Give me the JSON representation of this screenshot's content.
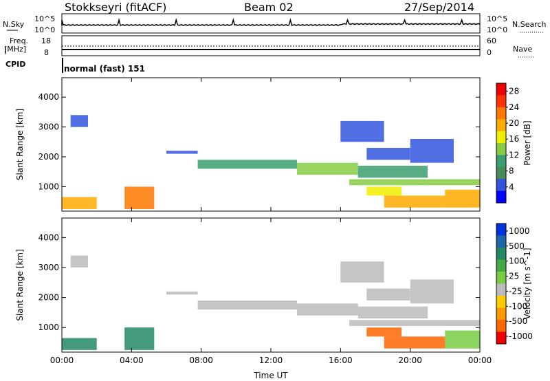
{
  "header": {
    "station": "Stokkseyri (fitACF)",
    "beam": "Beam 02",
    "date": "27/Sep/2014"
  },
  "top_panel": {
    "nsky_label": "N.Sky",
    "nsky_ticks": [
      "10^5",
      "10^0"
    ],
    "nsearch_label": "N.Search",
    "nsearch_ticks": [
      "10^5",
      "10^0"
    ],
    "freq_label": "Freq.",
    "freq_unit": "[MHz]",
    "freq_ticks": [
      "18",
      "8"
    ],
    "nave_label": "Nave",
    "nave_ticks": [
      "60",
      "0"
    ],
    "cpid_label": "CPID",
    "cpid_value": "normal (fast) 151"
  },
  "colors": {
    "power": [
      "#0000ff",
      "#3355dd",
      "#4a8a5a",
      "#3aa070",
      "#88cc44",
      "#eeee00",
      "#ffaa00",
      "#ff7700",
      "#ff3300",
      "#ee0000"
    ],
    "velocity": [
      "#0033dd",
      "#2266aa",
      "#228866",
      "#44aa44",
      "#77cc44",
      "#bbbbbb",
      "#ffcc00",
      "#ff9900",
      "#ff6600",
      "#ee0000"
    ]
  },
  "chart_data": [
    {
      "type": "heatmap",
      "title": "Power",
      "xlabel": "Time UT",
      "ylabel": "Slant Range [km]",
      "x_ticks": [
        "00:00",
        "04:00",
        "08:00",
        "12:00",
        "16:00",
        "20:00",
        "00:00"
      ],
      "x_range_hours": [
        0,
        24
      ],
      "y_ticks": [
        1000,
        2000,
        3000,
        4000
      ],
      "ylim": [
        180,
        4650
      ],
      "colorbar": {
        "label": "Power [dB]",
        "ticks": [
          "4",
          "8",
          "12",
          "16",
          "20",
          "24",
          "28"
        ],
        "range": [
          0,
          30
        ]
      },
      "regions": [
        {
          "t": [
            0.0,
            2.0
          ],
          "r": [
            250,
            650
          ],
          "v": 18
        },
        {
          "t": [
            3.6,
            5.3
          ],
          "r": [
            250,
            1000
          ],
          "v": 22
        },
        {
          "t": [
            0.5,
            1.5
          ],
          "r": [
            3000,
            3400
          ],
          "v": 3
        },
        {
          "t": [
            6.0,
            7.8
          ],
          "r": [
            2100,
            2200
          ],
          "v": 5
        },
        {
          "t": [
            7.8,
            13.5
          ],
          "r": [
            1600,
            1900
          ],
          "v": 10
        },
        {
          "t": [
            13.5,
            17.0
          ],
          "r": [
            1400,
            1800
          ],
          "v": 12
        },
        {
          "t": [
            17.0,
            21.0
          ],
          "r": [
            1300,
            1700
          ],
          "v": 10
        },
        {
          "t": [
            17.5,
            20.0
          ],
          "r": [
            1900,
            2300
          ],
          "v": 5
        },
        {
          "t": [
            20.0,
            22.5
          ],
          "r": [
            1800,
            2600
          ],
          "v": 4
        },
        {
          "t": [
            16.5,
            24.0
          ],
          "r": [
            1050,
            1250
          ],
          "v": 14
        },
        {
          "t": [
            17.5,
            19.5
          ],
          "r": [
            700,
            1000
          ],
          "v": 16
        },
        {
          "t": [
            18.5,
            22.0
          ],
          "r": [
            300,
            700
          ],
          "v": 18
        },
        {
          "t": [
            22.0,
            24.0
          ],
          "r": [
            300,
            900
          ],
          "v": 20
        },
        {
          "t": [
            16.0,
            18.5
          ],
          "r": [
            2500,
            3200
          ],
          "v": 4
        }
      ]
    },
    {
      "type": "heatmap",
      "title": "Velocity",
      "xlabel": "Time UT",
      "ylabel": "Slant Range [km]",
      "x_ticks": [
        "00:00",
        "04:00",
        "08:00",
        "12:00",
        "16:00",
        "20:00",
        "00:00"
      ],
      "x_range_hours": [
        0,
        24
      ],
      "y_ticks": [
        1000,
        2000,
        3000,
        4000
      ],
      "ylim": [
        180,
        4650
      ],
      "colorbar": {
        "label": "Velocity [m s^-1]",
        "ticks": [
          "1000",
          "500",
          "100",
          "25",
          "-25",
          "-100",
          "-500",
          "-1000"
        ]
      },
      "regions": [
        {
          "t": [
            0.0,
            2.0
          ],
          "r": [
            250,
            650
          ],
          "v": 2
        },
        {
          "t": [
            3.6,
            5.3
          ],
          "r": [
            250,
            1000
          ],
          "v": 2
        },
        {
          "t": [
            0.5,
            1.5
          ],
          "r": [
            3000,
            3400
          ],
          "v": 5
        },
        {
          "t": [
            6.0,
            7.8
          ],
          "r": [
            2100,
            2200
          ],
          "v": 5
        },
        {
          "t": [
            7.8,
            13.5
          ],
          "r": [
            1600,
            1900
          ],
          "v": 5
        },
        {
          "t": [
            13.5,
            17.0
          ],
          "r": [
            1400,
            1800
          ],
          "v": 5
        },
        {
          "t": [
            17.0,
            21.0
          ],
          "r": [
            1300,
            1700
          ],
          "v": 5
        },
        {
          "t": [
            17.5,
            20.0
          ],
          "r": [
            1900,
            2300
          ],
          "v": 5
        },
        {
          "t": [
            20.0,
            22.5
          ],
          "r": [
            1800,
            2600
          ],
          "v": 5
        },
        {
          "t": [
            16.5,
            24.0
          ],
          "r": [
            1050,
            1250
          ],
          "v": 5
        },
        {
          "t": [
            17.5,
            19.5
          ],
          "r": [
            700,
            1000
          ],
          "v": 8
        },
        {
          "t": [
            18.5,
            22.0
          ],
          "r": [
            300,
            700
          ],
          "v": 8
        },
        {
          "t": [
            22.0,
            24.0
          ],
          "r": [
            300,
            900
          ],
          "v": 4
        },
        {
          "t": [
            16.0,
            18.5
          ],
          "r": [
            2500,
            3200
          ],
          "v": 5
        }
      ]
    }
  ]
}
